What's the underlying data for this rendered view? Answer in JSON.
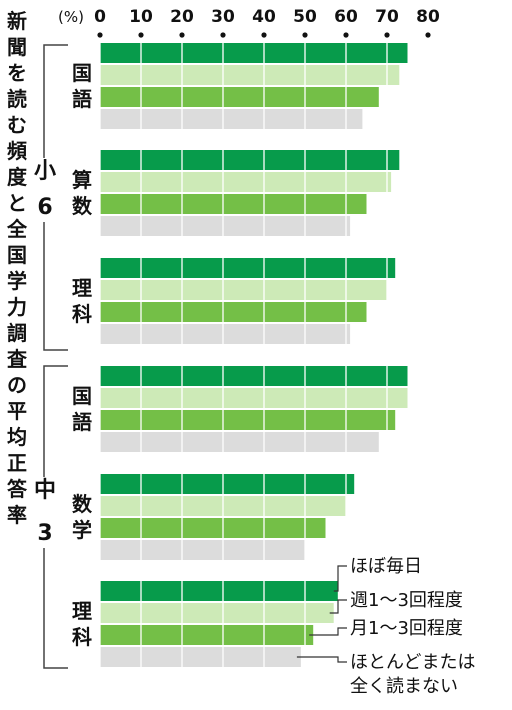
{
  "chart_data": {
    "type": "bar",
    "orientation": "horizontal",
    "title": "新聞を読む頻度と全国学力調査の平均正答率",
    "unit_label": "(%)",
    "xlim": [
      0,
      80
    ],
    "x_ticks": [
      "0",
      "10",
      "20",
      "30",
      "40",
      "50",
      "60",
      "70",
      "80"
    ],
    "grid": true,
    "legend_position": "bottom-right",
    "series": [
      {
        "name": "ほぼ毎日",
        "color": "#079b4b"
      },
      {
        "name": "週1〜3回程度",
        "color": "#cdeab7"
      },
      {
        "name": "月1〜3回程度",
        "color": "#74bf47"
      },
      {
        "name": "ほとんどまたは全く読まない",
        "color": "#dcdcdc"
      }
    ],
    "groups": [
      {
        "label": "小6",
        "subjects": [
          {
            "label": "国語",
            "values": [
              75,
              73,
              68,
              64
            ]
          },
          {
            "label": "算数",
            "values": [
              73,
              71,
              65,
              61
            ]
          },
          {
            "label": "理科",
            "values": [
              72,
              70,
              65,
              61
            ]
          }
        ]
      },
      {
        "label": "中3",
        "subjects": [
          {
            "label": "国語",
            "values": [
              75,
              75,
              72,
              68
            ]
          },
          {
            "label": "数学",
            "values": [
              62,
              60,
              55,
              50
            ]
          },
          {
            "label": "理科",
            "values": [
              58,
              57,
              52,
              49
            ]
          }
        ]
      }
    ]
  }
}
